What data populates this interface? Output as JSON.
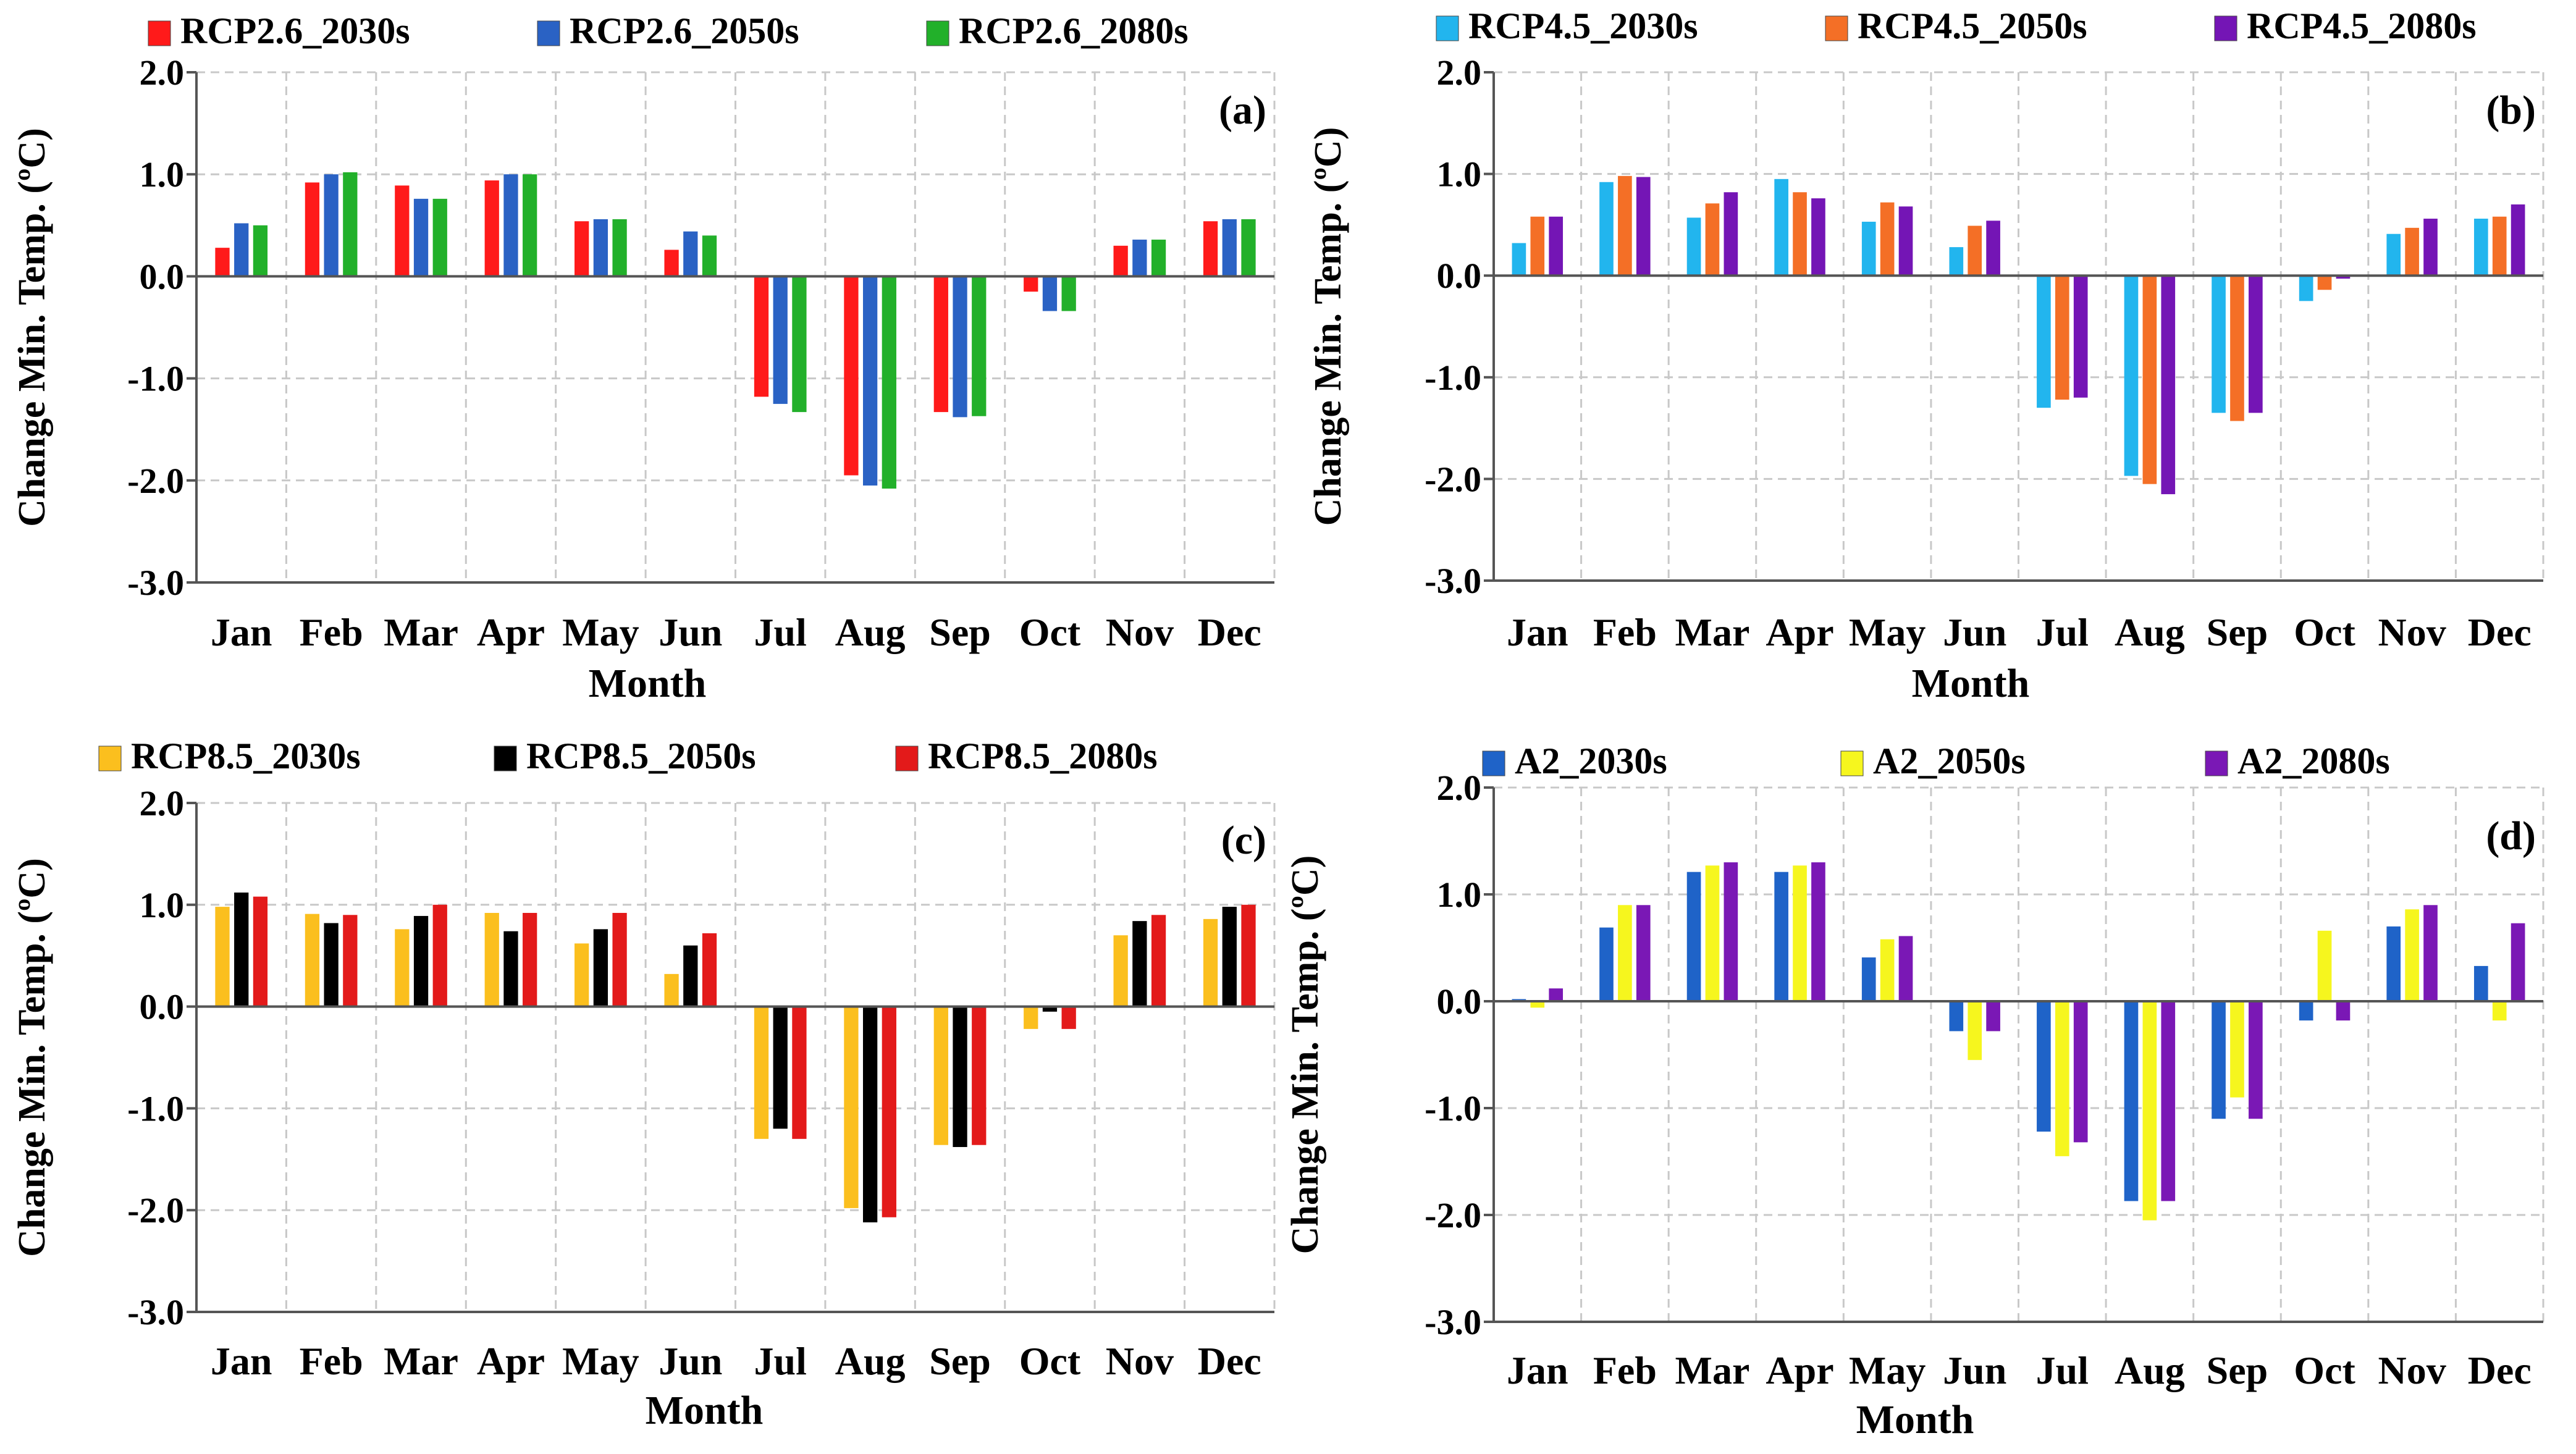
{
  "figure": {
    "x_axis_title": "Month",
    "y_axis_title": "Change Min. Temp. (ºC)"
  },
  "chart_data": [
    {
      "type": "bar",
      "panel_label": "(a)",
      "categories": [
        "Jan",
        "Feb",
        "Mar",
        "Apr",
        "May",
        "Jun",
        "Jul",
        "Aug",
        "Sep",
        "Oct",
        "Nov",
        "Dec"
      ],
      "ylim": [
        -3.0,
        2.0
      ],
      "yticks": [
        "2.0",
        "1.0",
        "0.0",
        "-1.0",
        "-2.0",
        "-3.0"
      ],
      "ylabel": "Change Min. Temp. (ºC)",
      "xlabel": "Month",
      "grid": true,
      "legend_position": "top",
      "series": [
        {
          "name": "RCP2.6_2030s",
          "color": "#ff1a1a",
          "values": [
            0.28,
            0.92,
            0.89,
            0.94,
            0.54,
            0.26,
            -1.18,
            -1.95,
            -1.33,
            -0.15,
            0.3,
            0.54
          ]
        },
        {
          "name": "RCP2.6_2050s",
          "color": "#2a62c4",
          "values": [
            0.52,
            1.0,
            0.76,
            1.0,
            0.56,
            0.44,
            -1.25,
            -2.05,
            -1.38,
            -0.34,
            0.36,
            0.56
          ]
        },
        {
          "name": "RCP2.6_2080s",
          "color": "#22b02a",
          "values": [
            0.5,
            1.02,
            0.76,
            1.0,
            0.56,
            0.4,
            -1.33,
            -2.08,
            -1.37,
            -0.34,
            0.36,
            0.56
          ]
        }
      ]
    },
    {
      "type": "bar",
      "panel_label": "(b)",
      "categories": [
        "Jan",
        "Feb",
        "Mar",
        "Apr",
        "May",
        "Jun",
        "Jul",
        "Aug",
        "Sep",
        "Oct",
        "Nov",
        "Dec"
      ],
      "ylim": [
        -3.0,
        2.0
      ],
      "yticks": [
        "2.0",
        "1.0",
        "0.0",
        "-1.0",
        "-2.0",
        "-3.0"
      ],
      "ylabel": "Change Min. Temp. (ºC)",
      "xlabel": "Month",
      "grid": true,
      "legend_position": "top",
      "series": [
        {
          "name": "RCP4.5_2030s",
          "color": "#22b5ee",
          "values": [
            0.32,
            0.92,
            0.57,
            0.95,
            0.53,
            0.28,
            -1.3,
            -1.97,
            -1.35,
            -0.25,
            0.41,
            0.56
          ]
        },
        {
          "name": "RCP4.5_2050s",
          "color": "#f46f26",
          "values": [
            0.58,
            0.98,
            0.71,
            0.82,
            0.72,
            0.49,
            -1.22,
            -2.05,
            -1.43,
            -0.14,
            0.47,
            0.58
          ]
        },
        {
          "name": "RCP4.5_2080s",
          "color": "#7415b5",
          "values": [
            0.58,
            0.97,
            0.82,
            0.76,
            0.68,
            0.54,
            -1.2,
            -2.15,
            -1.35,
            -0.03,
            0.56,
            0.7
          ]
        }
      ]
    },
    {
      "type": "bar",
      "panel_label": "(c)",
      "categories": [
        "Jan",
        "Feb",
        "Mar",
        "Apr",
        "May",
        "Jun",
        "Jul",
        "Aug",
        "Sep",
        "Oct",
        "Nov",
        "Dec"
      ],
      "ylim": [
        -3.0,
        2.0
      ],
      "yticks": [
        "2.0",
        "1.0",
        "0.0",
        "-1.0",
        "-2.0",
        "-3.0"
      ],
      "ylabel": "Change Min. Temp. (ºC)",
      "xlabel": "Month",
      "grid": true,
      "legend_position": "top",
      "series": [
        {
          "name": "RCP8.5_2030s",
          "color": "#fbbf1e",
          "values": [
            0.98,
            0.91,
            0.76,
            0.92,
            0.62,
            0.32,
            -1.3,
            -1.98,
            -1.36,
            -0.22,
            0.7,
            0.86
          ]
        },
        {
          "name": "RCP8.5_2050s",
          "color": "#000000",
          "values": [
            1.12,
            0.82,
            0.89,
            0.74,
            0.76,
            0.6,
            -1.2,
            -2.12,
            -1.38,
            -0.05,
            0.84,
            0.98
          ]
        },
        {
          "name": "RCP8.5_2080s",
          "color": "#e31a1a",
          "values": [
            1.08,
            0.9,
            1.0,
            0.92,
            0.92,
            0.72,
            -1.3,
            -2.07,
            -1.36,
            -0.22,
            0.9,
            1.0
          ]
        }
      ]
    },
    {
      "type": "bar",
      "panel_label": "(d)",
      "categories": [
        "Jan",
        "Feb",
        "Mar",
        "Apr",
        "May",
        "Jun",
        "Jul",
        "Aug",
        "Sep",
        "Oct",
        "Nov",
        "Dec"
      ],
      "ylim": [
        -3.0,
        2.0
      ],
      "yticks": [
        "2.0",
        "1.0",
        "0.0",
        "-1.0",
        "-2.0",
        "-3.0"
      ],
      "ylabel": "Change Min. Temp. (ºC)",
      "xlabel": "Month",
      "grid": true,
      "legend_position": "top",
      "series": [
        {
          "name": "A2_2030s",
          "color": "#1f63c8",
          "values": [
            0.02,
            0.69,
            1.21,
            1.21,
            0.41,
            -0.28,
            -1.22,
            -1.87,
            -1.1,
            -0.18,
            0.7,
            0.33
          ]
        },
        {
          "name": "A2_2050s",
          "color": "#f6f61e",
          "values": [
            -0.06,
            0.9,
            1.27,
            1.27,
            0.58,
            -0.55,
            -1.45,
            -2.05,
            -0.9,
            0.66,
            0.86,
            -0.18
          ]
        },
        {
          "name": "A2_2080s",
          "color": "#7a18b5",
          "values": [
            0.12,
            0.9,
            1.3,
            1.3,
            0.61,
            -0.28,
            -1.32,
            -1.87,
            -1.1,
            -0.18,
            0.9,
            0.73
          ]
        }
      ]
    }
  ]
}
